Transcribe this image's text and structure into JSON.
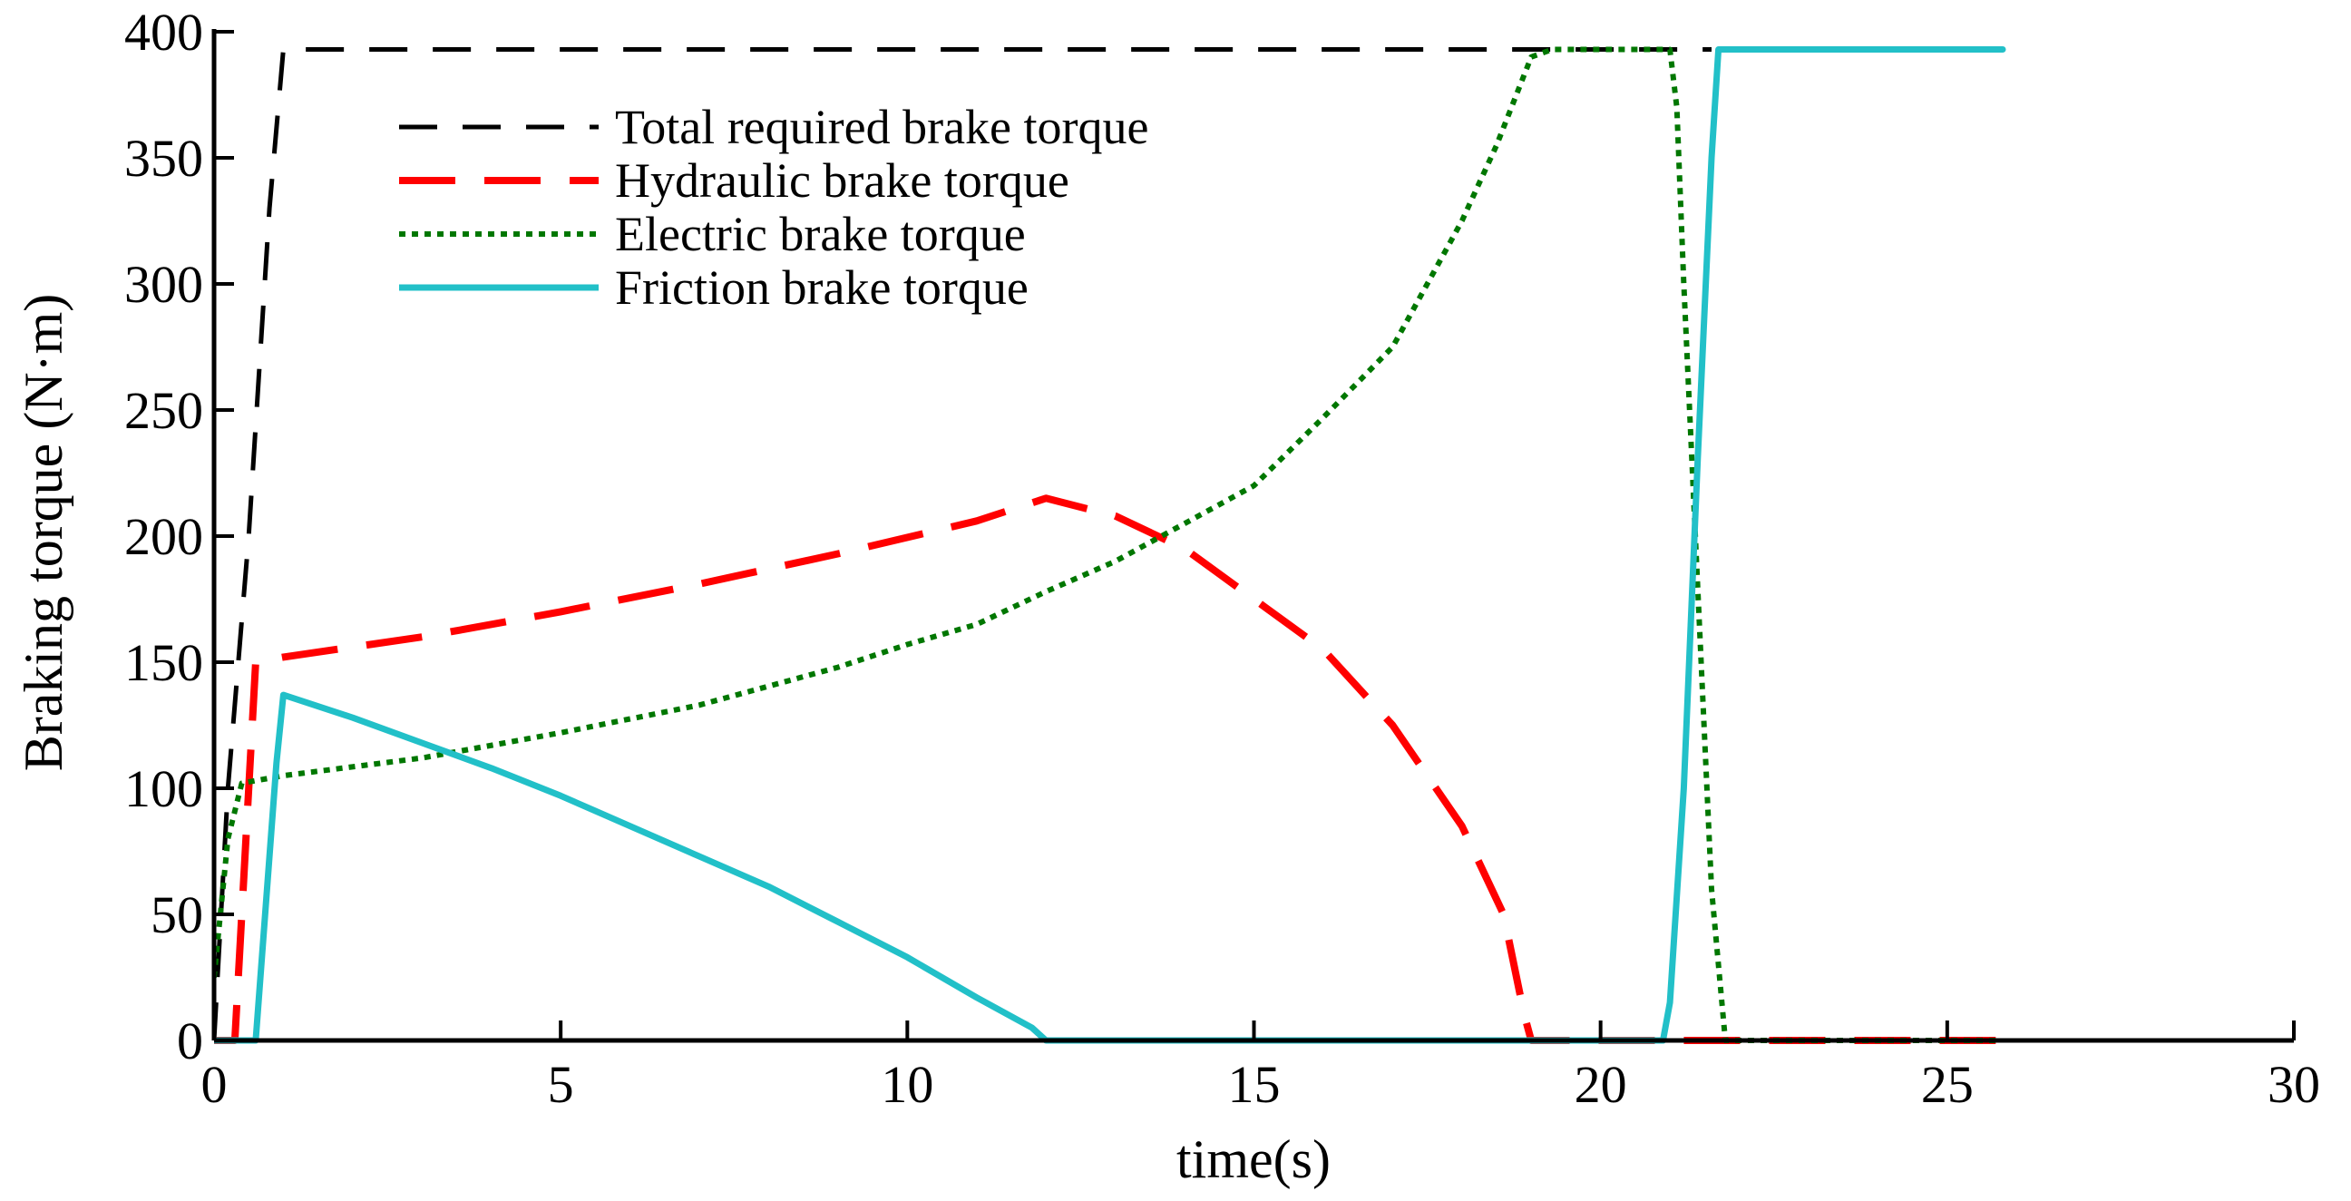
{
  "chart_data": {
    "type": "line",
    "title": "",
    "xlabel": "time(s)",
    "ylabel": "Braking torque (N·m)",
    "xlim": [
      0,
      30
    ],
    "ylim": [
      0,
      400
    ],
    "xticks": [
      0,
      5,
      10,
      15,
      20,
      25,
      30
    ],
    "yticks": [
      0,
      50,
      100,
      150,
      200,
      250,
      300,
      350,
      400
    ],
    "xtick_labels": [
      "0",
      "5",
      "10",
      "15",
      "20",
      "25",
      "30"
    ],
    "ytick_labels": [
      "0",
      "50",
      "100",
      "150",
      "200",
      "250",
      "300",
      "350",
      "400"
    ],
    "grid": false,
    "legend_position": "top-left",
    "series": [
      {
        "name": "Total required brake torque",
        "color": "#000000",
        "style": "dashed",
        "x": [
          0,
          0.2,
          0.5,
          0.8,
          1.0,
          21.6
        ],
        "y": [
          0,
          100,
          200,
          330,
          393,
          393
        ]
      },
      {
        "name": "Hydraulic brake torque",
        "color": "#ff0000",
        "style": "long-dashed",
        "x": [
          0,
          0.3,
          0.6,
          1.0,
          3.0,
          5.0,
          7.0,
          9.0,
          11.0,
          12.0,
          13.0,
          14.0,
          15.0,
          16.0,
          17.0,
          18.0,
          18.6,
          18.9,
          19.0,
          19.5,
          22.0,
          25.7
        ],
        "y": [
          0,
          0,
          150,
          152,
          160,
          170,
          181,
          193,
          206,
          215,
          208,
          195,
          175,
          155,
          125,
          85,
          50,
          10,
          0,
          0,
          0,
          0
        ]
      },
      {
        "name": "Electric brake torque",
        "color": "#007700",
        "style": "dotted",
        "x": [
          0,
          0.2,
          0.4,
          1.0,
          3.0,
          5.0,
          7.0,
          9.0,
          10.0,
          11.0,
          12.0,
          13.0,
          14.0,
          15.0,
          16.0,
          17.0,
          18.0,
          18.5,
          19.0,
          19.3,
          20.0,
          20.5,
          21.0,
          21.1,
          21.2,
          21.4,
          21.6,
          21.8,
          25.7
        ],
        "y": [
          25,
          80,
          102,
          105,
          112,
          122,
          133,
          148,
          157,
          165,
          178,
          190,
          205,
          220,
          247,
          275,
          325,
          355,
          390,
          393,
          393,
          393,
          393,
          370,
          300,
          180,
          60,
          0,
          0
        ]
      },
      {
        "name": "Friction brake torque",
        "color": "#22c0c8",
        "style": "solid",
        "x": [
          0,
          0.6,
          0.9,
          1.0,
          2.0,
          3.0,
          4.0,
          5.0,
          6.0,
          7.0,
          8.0,
          9.0,
          10.0,
          11.0,
          11.8,
          12.0,
          15.0,
          19.0,
          20.5,
          20.9,
          21.0,
          21.2,
          21.4,
          21.6,
          21.7,
          25.8
        ],
        "y": [
          0,
          0,
          110,
          137,
          128,
          118,
          108,
          97,
          85,
          73,
          61,
          47,
          33,
          17,
          5,
          0,
          0,
          0,
          0,
          0,
          15,
          100,
          230,
          350,
          393,
          393
        ]
      }
    ]
  }
}
